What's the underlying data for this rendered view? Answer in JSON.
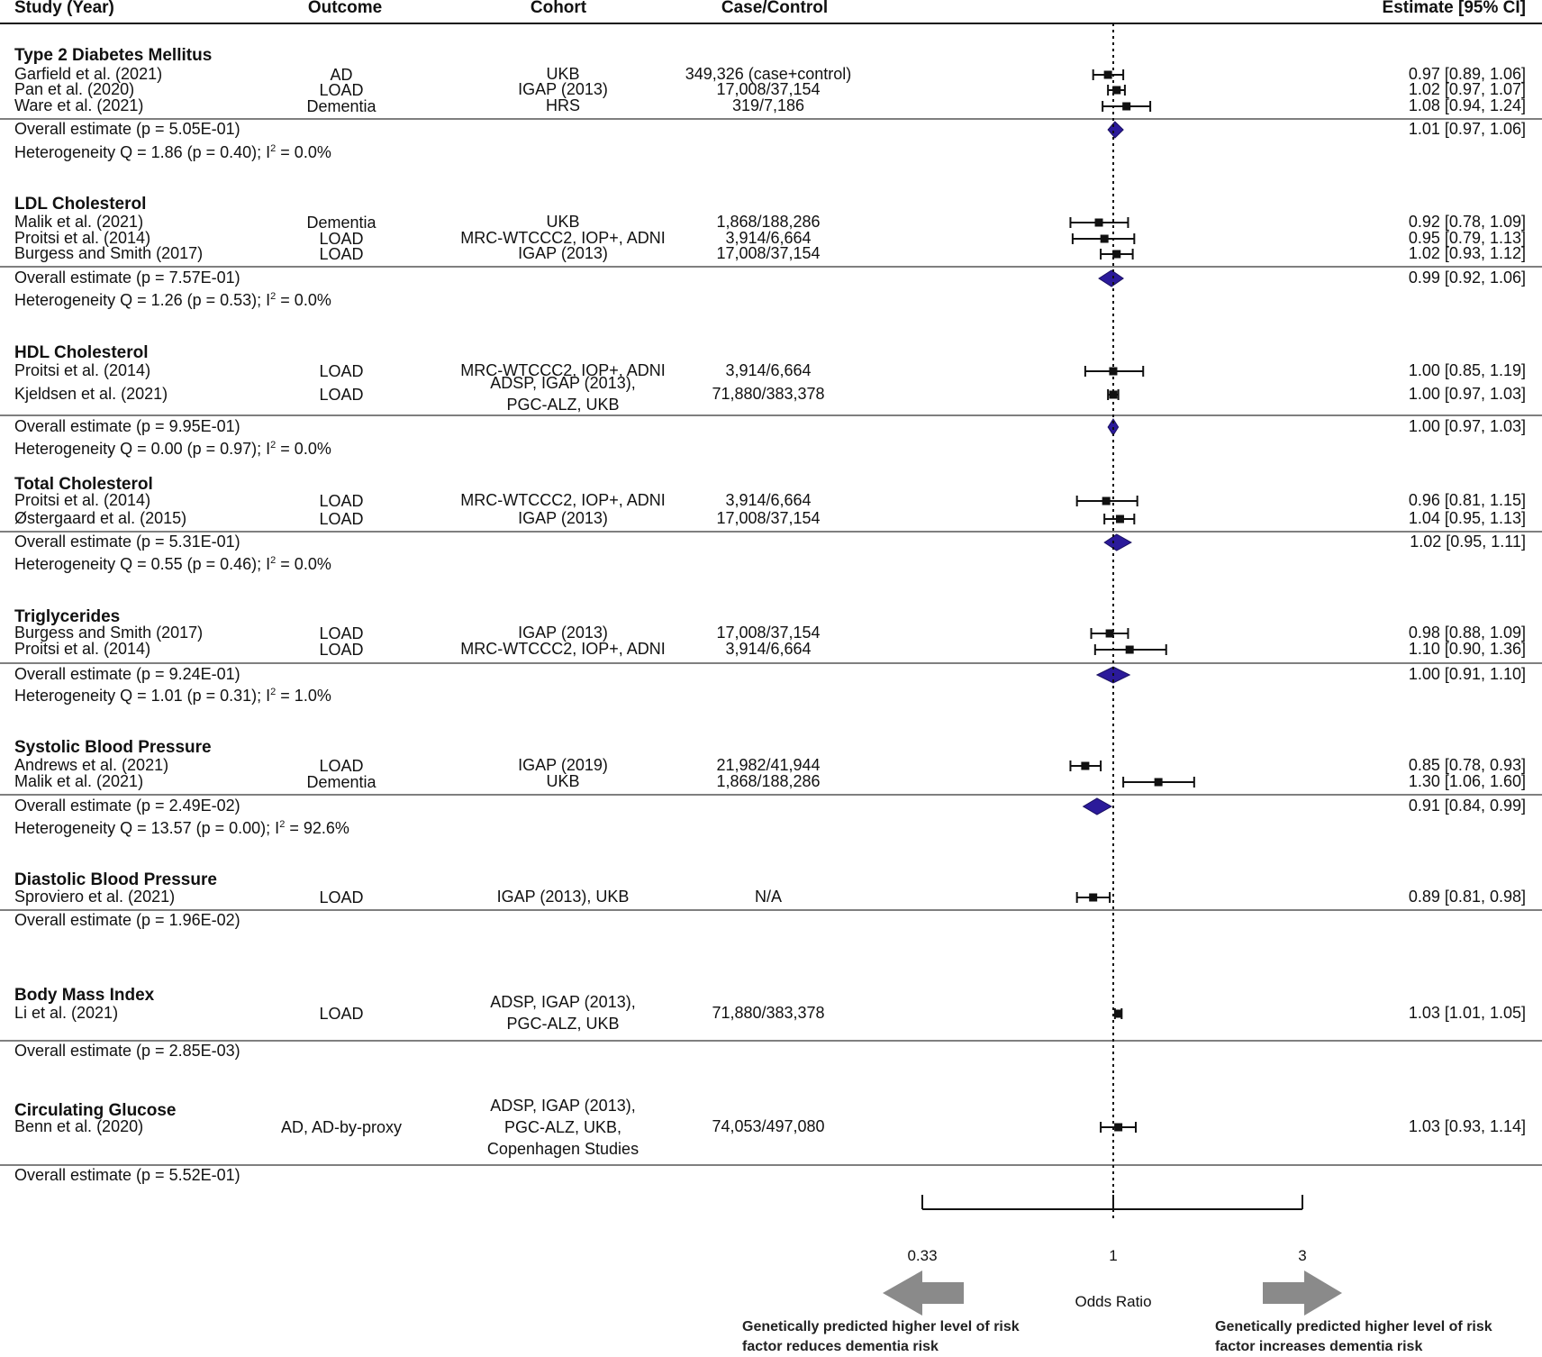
{
  "chart_data": {
    "type": "forest",
    "columns": [
      "Study (Year)",
      "Outcome",
      "Cohort",
      "Case/Control",
      "Estimate [95% CI]"
    ],
    "x_axis": {
      "label": "Odds Ratio",
      "scale": "log",
      "ticks": [
        {
          "value": 0.33,
          "label": "0.33"
        },
        {
          "value": 1,
          "label": "1"
        },
        {
          "value": 3,
          "label": "3"
        }
      ],
      "reference_line": 1,
      "left_note": "Genetically predicted higher level of risk factor reduces dementia risk",
      "right_note": "Genetically predicted higher level of risk factor increases dementia risk"
    },
    "groups": [
      {
        "name": "Type 2 Diabetes Mellitus",
        "studies": [
          {
            "study": "Garfield et al. (2021)",
            "outcome": "AD",
            "cohort": "UKB",
            "cases": "349,326 (case+control)",
            "est": 0.97,
            "lo": 0.89,
            "hi": 1.06,
            "ci": "0.97 [0.89, 1.06]"
          },
          {
            "study": "Pan et al. (2020)",
            "outcome": "LOAD",
            "cohort": "IGAP (2013)",
            "cases": "17,008/37,154",
            "est": 1.02,
            "lo": 0.97,
            "hi": 1.07,
            "ci": "1.02 [0.97, 1.07]"
          },
          {
            "study": "Ware et al. (2021)",
            "outcome": "Dementia",
            "cohort": "HRS",
            "cases": "319/7,186",
            "est": 1.08,
            "lo": 0.94,
            "hi": 1.24,
            "ci": "1.08 [0.94, 1.24]"
          }
        ],
        "overall": {
          "label": "Overall estimate (p = 5.05E-01)",
          "est": 1.01,
          "lo": 0.97,
          "hi": 1.06,
          "ci": "1.01 [0.97, 1.06]"
        },
        "het": {
          "text": "Heterogeneity Q = 1.86 (p = 0.40); I",
          "i2": "= 0.0%"
        }
      },
      {
        "name": "LDL Cholesterol",
        "studies": [
          {
            "study": "Malik et al. (2021)",
            "outcome": "Dementia",
            "cohort": "UKB",
            "cases": "1,868/188,286",
            "est": 0.92,
            "lo": 0.78,
            "hi": 1.09,
            "ci": "0.92 [0.78, 1.09]"
          },
          {
            "study": "Proitsi et al. (2014)",
            "outcome": "LOAD",
            "cohort": "MRC-WTCCC2, IOP+, ADNI",
            "cases": "3,914/6,664",
            "est": 0.95,
            "lo": 0.79,
            "hi": 1.13,
            "ci": "0.95 [0.79, 1.13]"
          },
          {
            "study": "Burgess and Smith (2017)",
            "outcome": "LOAD",
            "cohort": "IGAP (2013)",
            "cases": "17,008/37,154",
            "est": 1.02,
            "lo": 0.93,
            "hi": 1.12,
            "ci": "1.02 [0.93, 1.12]"
          }
        ],
        "overall": {
          "label": "Overall estimate (p = 7.57E-01)",
          "est": 0.99,
          "lo": 0.92,
          "hi": 1.06,
          "ci": "0.99 [0.92, 1.06]"
        },
        "het": {
          "text": "Heterogeneity Q = 1.26 (p = 0.53); I",
          "i2": "= 0.0%"
        }
      },
      {
        "name": "HDL Cholesterol",
        "studies": [
          {
            "study": "Proitsi et al. (2014)",
            "outcome": "LOAD",
            "cohort": "MRC-WTCCC2, IOP+, ADNI",
            "cases": "3,914/6,664",
            "est": 1.0,
            "lo": 0.85,
            "hi": 1.19,
            "ci": "1.00 [0.85, 1.19]"
          },
          {
            "study": "Kjeldsen et al. (2021)",
            "outcome": "LOAD",
            "cohort": "ADSP, IGAP (2013), PGC-ALZ, UKB",
            "cases": "71,880/383,378",
            "est": 1.0,
            "lo": 0.97,
            "hi": 1.03,
            "ci": "1.00 [0.97, 1.03]"
          }
        ],
        "overall": {
          "label": "Overall estimate (p = 9.95E-01)",
          "est": 1.0,
          "lo": 0.97,
          "hi": 1.03,
          "ci": "1.00 [0.97, 1.03]"
        },
        "het": {
          "text": "Heterogeneity Q = 0.00 (p = 0.97); I",
          "i2": "= 0.0%"
        }
      },
      {
        "name": "Total Cholesterol",
        "studies": [
          {
            "study": "Proitsi et al. (2014)",
            "outcome": "LOAD",
            "cohort": "MRC-WTCCC2, IOP+, ADNI",
            "cases": "3,914/6,664",
            "est": 0.96,
            "lo": 0.81,
            "hi": 1.15,
            "ci": "0.96 [0.81, 1.15]"
          },
          {
            "study": "Østergaard et al. (2015)",
            "outcome": "LOAD",
            "cohort": "IGAP (2013)",
            "cases": "17,008/37,154",
            "est": 1.04,
            "lo": 0.95,
            "hi": 1.13,
            "ci": "1.04 [0.95, 1.13]"
          }
        ],
        "overall": {
          "label": "Overall estimate (p = 5.31E-01)",
          "est": 1.02,
          "lo": 0.95,
          "hi": 1.11,
          "ci": "1.02 [0.95, 1.11]"
        },
        "het": {
          "text": "Heterogeneity Q = 0.55 (p = 0.46); I",
          "i2": "= 0.0%"
        }
      },
      {
        "name": "Triglycerides",
        "studies": [
          {
            "study": "Burgess and Smith (2017)",
            "outcome": "LOAD",
            "cohort": "IGAP (2013)",
            "cases": "17,008/37,154",
            "est": 0.98,
            "lo": 0.88,
            "hi": 1.09,
            "ci": "0.98 [0.88, 1.09]"
          },
          {
            "study": "Proitsi et al. (2014)",
            "outcome": "LOAD",
            "cohort": "MRC-WTCCC2, IOP+, ADNI",
            "cases": "3,914/6,664",
            "est": 1.1,
            "lo": 0.9,
            "hi": 1.36,
            "ci": "1.10 [0.90, 1.36]"
          }
        ],
        "overall": {
          "label": "Overall estimate (p = 9.24E-01)",
          "est": 1.0,
          "lo": 0.91,
          "hi": 1.1,
          "ci": "1.00 [0.91, 1.10]"
        },
        "het": {
          "text": "Heterogeneity Q = 1.01 (p = 0.31); I",
          "i2": "= 1.0%"
        }
      },
      {
        "name": "Systolic Blood Pressure",
        "studies": [
          {
            "study": "Andrews et al. (2021)",
            "outcome": "LOAD",
            "cohort": "IGAP (2019)",
            "cases": "21,982/41,944",
            "est": 0.85,
            "lo": 0.78,
            "hi": 0.93,
            "ci": "0.85 [0.78, 0.93]"
          },
          {
            "study": "Malik et al. (2021)",
            "outcome": "Dementia",
            "cohort": "UKB",
            "cases": "1,868/188,286",
            "est": 1.3,
            "lo": 1.06,
            "hi": 1.6,
            "ci": "1.30 [1.06, 1.60]"
          }
        ],
        "overall": {
          "label": "Overall estimate (p = 2.49E-02)",
          "est": 0.91,
          "lo": 0.84,
          "hi": 0.99,
          "ci": "0.91 [0.84, 0.99]"
        },
        "het": {
          "text": "Heterogeneity Q = 13.57 (p = 0.00); I",
          "i2": "= 92.6%"
        }
      },
      {
        "name": "Diastolic Blood Pressure",
        "studies": [
          {
            "study": "Sproviero et al. (2021)",
            "outcome": "LOAD",
            "cohort": "IGAP (2013), UKB",
            "cases": "N/A",
            "est": 0.89,
            "lo": 0.81,
            "hi": 0.98,
            "ci": "0.89 [0.81, 0.98]"
          }
        ],
        "overall": {
          "label": "Overall estimate (p = 1.96E-02)"
        }
      },
      {
        "name": "Body Mass Index",
        "studies": [
          {
            "study": "Li et al. (2021)",
            "outcome": "LOAD",
            "cohort": "ADSP, IGAP (2013), PGC-ALZ, UKB",
            "cases": "71,880/383,378",
            "est": 1.03,
            "lo": 1.01,
            "hi": 1.05,
            "ci": "1.03 [1.01, 1.05]"
          }
        ],
        "overall": {
          "label": "Overall estimate (p = 2.85E-03)"
        }
      },
      {
        "name": "Circulating Glucose",
        "studies": [
          {
            "study": "Benn et al. (2020)",
            "outcome": "AD, AD-by-proxy",
            "cohort": "ADSP, IGAP (2013), PGC-ALZ, UKB, Copenhagen Studies",
            "cases": "74,053/497,080",
            "est": 1.03,
            "lo": 0.93,
            "hi": 1.14,
            "ci": "1.03 [0.93, 1.14]"
          }
        ],
        "overall": {
          "label": "Overall estimate (p = 5.52E-01)"
        }
      }
    ]
  },
  "colors": {
    "diamond": "#2b1a9a",
    "marker": "#111111",
    "arrow": "#8a8a8a",
    "rule": "#555555"
  }
}
